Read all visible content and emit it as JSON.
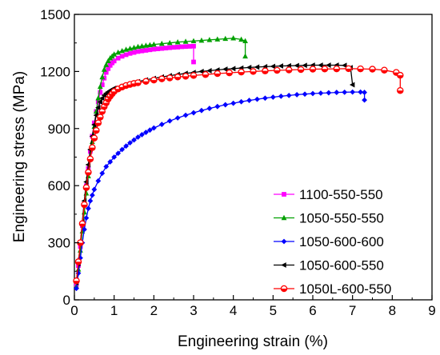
{
  "chart_data": {
    "type": "line",
    "xlabel": "Engineering strain (%)",
    "ylabel": "Engineering stress (MPa)",
    "xlim": [
      0,
      9
    ],
    "ylim": [
      0,
      1500
    ],
    "xticks": [
      0,
      1,
      2,
      3,
      4,
      5,
      6,
      7,
      8,
      9
    ],
    "yticks": [
      0,
      300,
      600,
      900,
      1200,
      1500
    ],
    "xtick_labels": [
      "0",
      "1",
      "2",
      "3",
      "4",
      "5",
      "6",
      "7",
      "8",
      "9"
    ],
    "ytick_labels": [
      "0",
      "300",
      "600",
      "900",
      "1200",
      "1500"
    ],
    "grid": false,
    "legend_position": "bottom-right",
    "series": [
      {
        "name": "1100-550-550",
        "color": "#ff00ff",
        "marker": "square",
        "x": [
          0.05,
          0.1,
          0.15,
          0.2,
          0.25,
          0.3,
          0.35,
          0.4,
          0.45,
          0.5,
          0.55,
          0.6,
          0.65,
          0.7,
          0.75,
          0.8,
          0.85,
          0.9,
          0.95,
          1.0,
          1.1,
          1.2,
          1.3,
          1.4,
          1.5,
          1.6,
          1.7,
          1.8,
          1.9,
          2.0,
          2.1,
          2.2,
          2.3,
          2.4,
          2.5,
          2.6,
          2.7,
          2.8,
          2.9,
          3.0,
          3.0
        ],
        "y": [
          80,
          180,
          280,
          390,
          500,
          600,
          690,
          780,
          860,
          930,
          990,
          1040,
          1090,
          1130,
          1165,
          1195,
          1215,
          1232,
          1245,
          1255,
          1270,
          1280,
          1288,
          1295,
          1300,
          1305,
          1308,
          1311,
          1314,
          1317,
          1319,
          1321,
          1323,
          1325,
          1327,
          1328,
          1330,
          1331,
          1332,
          1333,
          1250
        ]
      },
      {
        "name": "1050-550-550",
        "color": "#00a000",
        "marker": "triangle-up",
        "x": [
          0.05,
          0.1,
          0.15,
          0.2,
          0.25,
          0.3,
          0.35,
          0.4,
          0.45,
          0.5,
          0.55,
          0.6,
          0.65,
          0.7,
          0.75,
          0.8,
          0.85,
          0.9,
          0.95,
          1.0,
          1.1,
          1.2,
          1.3,
          1.4,
          1.5,
          1.6,
          1.7,
          1.8,
          1.9,
          2.0,
          2.2,
          2.4,
          2.6,
          2.8,
          3.0,
          3.2,
          3.4,
          3.6,
          3.8,
          4.0,
          4.2,
          4.3,
          4.3
        ],
        "y": [
          70,
          160,
          260,
          360,
          460,
          560,
          650,
          740,
          830,
          910,
          990,
          1060,
          1120,
          1170,
          1210,
          1235,
          1255,
          1270,
          1280,
          1290,
          1300,
          1308,
          1315,
          1320,
          1325,
          1330,
          1333,
          1336,
          1339,
          1342,
          1346,
          1350,
          1354,
          1357,
          1360,
          1363,
          1366,
          1369,
          1372,
          1375,
          1368,
          1360,
          1280
        ]
      },
      {
        "name": "1050-600-600",
        "color": "#0000ff",
        "marker": "diamond",
        "x": [
          0.05,
          0.1,
          0.15,
          0.2,
          0.25,
          0.3,
          0.35,
          0.4,
          0.45,
          0.5,
          0.6,
          0.7,
          0.8,
          0.9,
          1.0,
          1.1,
          1.2,
          1.3,
          1.4,
          1.5,
          1.6,
          1.7,
          1.8,
          1.9,
          2.0,
          2.2,
          2.4,
          2.6,
          2.8,
          3.0,
          3.2,
          3.4,
          3.6,
          3.8,
          4.0,
          4.2,
          4.4,
          4.6,
          4.8,
          5.0,
          5.2,
          5.4,
          5.6,
          5.8,
          6.0,
          6.2,
          6.4,
          6.6,
          6.8,
          7.0,
          7.2,
          7.3,
          7.3
        ],
        "y": [
          60,
          140,
          220,
          300,
          370,
          430,
          480,
          520,
          550,
          580,
          625,
          665,
          700,
          725,
          750,
          770,
          790,
          808,
          825,
          840,
          855,
          868,
          880,
          892,
          903,
          922,
          940,
          956,
          970,
          983,
          995,
          1006,
          1016,
          1025,
          1033,
          1041,
          1048,
          1054,
          1060,
          1065,
          1070,
          1074,
          1078,
          1081,
          1084,
          1086,
          1088,
          1090,
          1091,
          1092,
          1092,
          1090,
          1050
        ]
      },
      {
        "name": "1050-600-550",
        "color": "#000000",
        "marker": "triangle-left",
        "x": [
          0.05,
          0.1,
          0.15,
          0.2,
          0.25,
          0.3,
          0.35,
          0.4,
          0.45,
          0.5,
          0.55,
          0.6,
          0.65,
          0.7,
          0.75,
          0.8,
          0.85,
          0.9,
          0.95,
          1.0,
          1.2,
          1.4,
          1.6,
          1.8,
          2.0,
          2.2,
          2.4,
          2.6,
          2.8,
          3.0,
          3.2,
          3.4,
          3.6,
          3.8,
          4.0,
          4.2,
          4.4,
          4.6,
          4.8,
          5.0,
          5.2,
          5.4,
          5.6,
          5.8,
          6.0,
          6.2,
          6.4,
          6.6,
          6.8,
          6.95,
          7.0
        ],
        "y": [
          90,
          190,
          300,
          410,
          520,
          620,
          710,
          790,
          860,
          920,
          970,
          1010,
          1040,
          1060,
          1075,
          1085,
          1093,
          1100,
          1106,
          1112,
          1125,
          1137,
          1147,
          1156,
          1164,
          1171,
          1178,
          1184,
          1190,
          1195,
          1200,
          1204,
          1208,
          1212,
          1215,
          1218,
          1221,
          1223,
          1225,
          1227,
          1229,
          1230,
          1231,
          1232,
          1233,
          1233,
          1233,
          1233,
          1232,
          1220,
          1130
        ]
      },
      {
        "name": "1050L-600-550",
        "color": "#ff0000",
        "marker": "circle-half",
        "x": [
          0.05,
          0.1,
          0.15,
          0.2,
          0.25,
          0.3,
          0.35,
          0.4,
          0.45,
          0.5,
          0.55,
          0.6,
          0.65,
          0.7,
          0.75,
          0.8,
          0.85,
          0.9,
          0.95,
          1.0,
          1.1,
          1.2,
          1.3,
          1.4,
          1.5,
          1.6,
          1.8,
          2.0,
          2.2,
          2.4,
          2.6,
          2.8,
          3.0,
          3.3,
          3.6,
          3.9,
          4.2,
          4.5,
          4.8,
          5.1,
          5.4,
          5.7,
          6.0,
          6.3,
          6.6,
          6.9,
          7.2,
          7.5,
          7.8,
          8.1,
          8.2,
          8.2
        ],
        "y": [
          100,
          200,
          300,
          400,
          500,
          590,
          670,
          740,
          800,
          850,
          890,
          930,
          960,
          990,
          1015,
          1035,
          1055,
          1070,
          1083,
          1095,
          1108,
          1118,
          1126,
          1132,
          1137,
          1141,
          1148,
          1155,
          1161,
          1166,
          1171,
          1175,
          1179,
          1184,
          1189,
          1193,
          1197,
          1200,
          1203,
          1206,
          1208,
          1210,
          1212,
          1213,
          1214,
          1215,
          1214,
          1212,
          1207,
          1195,
          1180,
          1100
        ]
      }
    ]
  }
}
